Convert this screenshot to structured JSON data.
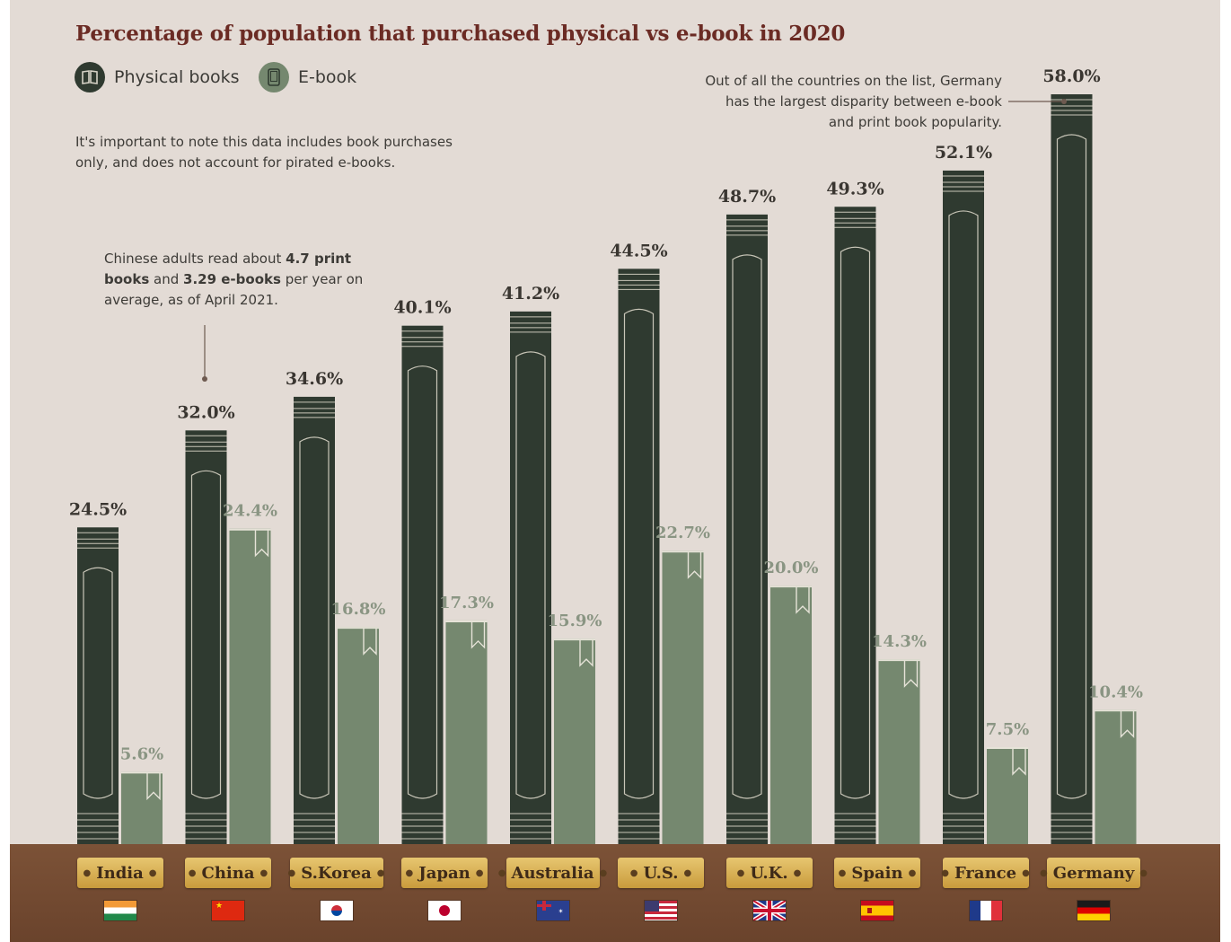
{
  "title": "Percentage of population that purchased physical vs e-book in 2020",
  "legend": {
    "physical": "Physical books",
    "ebook": "E-book"
  },
  "notes": {
    "disclaimer_line1": "It's important to note this data includes book purchases",
    "disclaimer_line2": "only, and does not account for pirated e-books.",
    "china_line1_a": "Chinese adults read about ",
    "china_line1_b": "4.7 print",
    "china_line2_a": "books",
    "china_line2_b": " and ",
    "china_line2_c": "3.29 e-books",
    "china_line2_d": " per year on",
    "china_line3": "average, as of April 2021.",
    "germany_line1": "Out of all the countries on the list, Germany",
    "germany_line2": "has the largest disparity  between e-book",
    "germany_line3": "and print book popularity."
  },
  "colors": {
    "physical": "#2f3a30",
    "ebook": "#75886f",
    "label_physical": "#3a3631",
    "label_ebook": "#8a9583",
    "title": "#6b2b24"
  },
  "chart_data": {
    "type": "bar",
    "title": "Percentage of population that purchased physical vs e-book in 2020",
    "categories": [
      "India",
      "China",
      "S.Korea",
      "Japan",
      "Australia",
      "U.S.",
      "U.K.",
      "Spain",
      "France",
      "Germany"
    ],
    "series": [
      {
        "name": "Physical books",
        "values": [
          24.5,
          32.0,
          34.6,
          40.1,
          41.2,
          44.5,
          48.7,
          49.3,
          52.1,
          58.0
        ]
      },
      {
        "name": "E-book",
        "values": [
          5.6,
          24.4,
          16.8,
          17.3,
          15.9,
          22.7,
          20.0,
          14.3,
          7.5,
          10.4
        ]
      }
    ],
    "value_labels": {
      "physical": [
        "24.5%",
        "32.0%",
        "34.6%",
        "40.1%",
        "41.2%",
        "44.5%",
        "48.7%",
        "49.3%",
        "52.1%",
        "58.0%"
      ],
      "ebook": [
        "5.6%",
        "24.4%",
        "16.8%",
        "17.3%",
        "15.9%",
        "22.7%",
        "20.0%",
        "14.3%",
        "7.5%",
        "10.4%"
      ]
    },
    "ylim": [
      0,
      60
    ],
    "xlabel": "",
    "ylabel": "",
    "grid": false,
    "legend": "top-left"
  }
}
